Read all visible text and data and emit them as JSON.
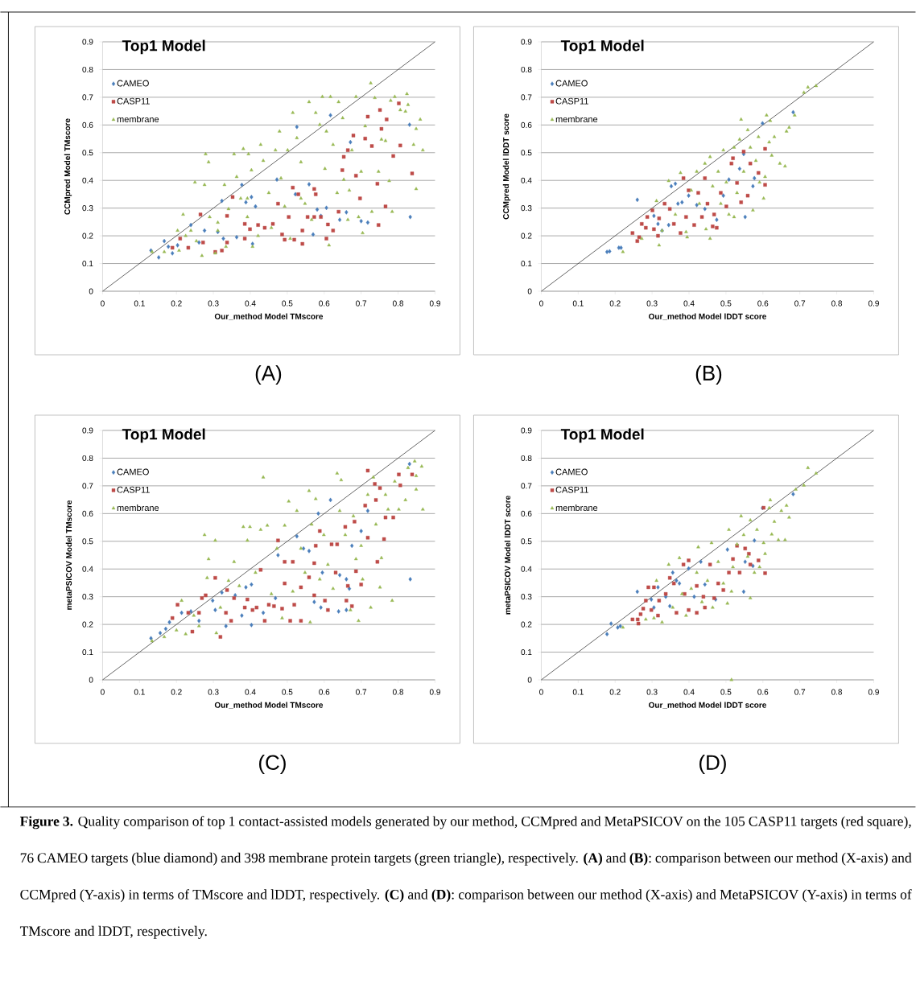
{
  "chart_data": [
    {
      "type": "scatter",
      "title": "Top1 Model",
      "xlabel": "Our_method Model TMscore",
      "ylabel": "CCMpred Model TMscore",
      "xlim": [
        0,
        0.9
      ],
      "ylim": [
        0,
        0.9
      ],
      "xticks": [
        0,
        0.1,
        0.2,
        0.3,
        0.4,
        0.5,
        0.6,
        0.7,
        0.8,
        0.9
      ],
      "yticks": [
        0,
        0.1,
        0.2,
        0.3,
        0.4,
        0.5,
        0.6,
        0.7,
        0.8,
        0.9
      ],
      "grid": "y",
      "legend": "top left",
      "annotations": [
        "(A)",
        "**Figure 3.** Quality comparison of top 1 contact-assisted models generated by our method, CCMpred and MetaPSICOV on the 105 CASP11 targets (red square), 76 CAMEO targets (blue diamond) and 398 membrane protein targets (green triangle), respectively. **(A)** and **(B)**: comparison between our method (X-axis) and CCMpred (Y-axis) in terms of TMscore and lDDT, respectively. **(C)** and **(D)**: comparison between our method (X-axis) and MetaPSICOV (Y-axis) in terms of TMscore and lDDT, respectively."
      ],
      "series": [
        {
          "name": "CAMEO",
          "color": "#4a7ebb",
          "marker": "diamond",
          "x": [
            0.131,
            0.152,
            0.167,
            0.178,
            0.189,
            0.203,
            0.239,
            0.261,
            0.276,
            0.312,
            0.327,
            0.323,
            0.363,
            0.377,
            0.388,
            0.403,
            0.406,
            0.414,
            0.472,
            0.522,
            0.526,
            0.559,
            0.57,
            0.581,
            0.591,
            0.606,
            0.617,
            0.642,
            0.66,
            0.671,
            0.7,
            0.718,
            0.831,
            0.833
          ],
          "values": [
            0.147,
            0.122,
            0.181,
            0.161,
            0.137,
            0.166,
            0.239,
            0.176,
            0.219,
            0.214,
            0.19,
            0.326,
            0.195,
            0.384,
            0.321,
            0.34,
            0.171,
            0.306,
            0.403,
            0.35,
            0.593,
            0.386,
            0.205,
            0.295,
            0.272,
            0.301,
            0.635,
            0.258,
            0.285,
            0.538,
            0.253,
            0.248,
            0.601,
            0.268
          ]
        },
        {
          "name": "CASP11",
          "color": "#be4b48",
          "marker": "square",
          "x": [
            0.189,
            0.21,
            0.232,
            0.265,
            0.272,
            0.305,
            0.323,
            0.337,
            0.337,
            0.352,
            0.385,
            0.385,
            0.399,
            0.421,
            0.439,
            0.461,
            0.475,
            0.486,
            0.493,
            0.504,
            0.515,
            0.519,
            0.53,
            0.541,
            0.541,
            0.555,
            0.573,
            0.573,
            0.577,
            0.591,
            0.606,
            0.61,
            0.624,
            0.639,
            0.649,
            0.653,
            0.664,
            0.679,
            0.686,
            0.697,
            0.711,
            0.718,
            0.729,
            0.744,
            0.747,
            0.751,
            0.755,
            0.766,
            0.769,
            0.787,
            0.802,
            0.806,
            0.838
          ],
          "values": [
            0.157,
            0.19,
            0.157,
            0.277,
            0.176,
            0.142,
            0.147,
            0.176,
            0.272,
            0.34,
            0.19,
            0.243,
            0.224,
            0.239,
            0.229,
            0.243,
            0.316,
            0.205,
            0.186,
            0.268,
            0.374,
            0.186,
            0.35,
            0.219,
            0.171,
            0.268,
            0.369,
            0.268,
            0.35,
            0.268,
            0.19,
            0.241,
            0.219,
            0.287,
            0.437,
            0.485,
            0.509,
            0.562,
            0.417,
            0.335,
            0.551,
            0.63,
            0.524,
            0.388,
            0.239,
            0.654,
            0.586,
            0.306,
            0.62,
            0.488,
            0.678,
            0.526,
            0.425
          ]
        },
        {
          "name": "membrane",
          "color": "#98b954",
          "marker": "triangle",
          "x": [
            0.134,
            0.167,
            0.203,
            0.207,
            0.218,
            0.239,
            0.25,
            0.254,
            0.269,
            0.276,
            0.279,
            0.287,
            0.29,
            0.305,
            0.312,
            0.33,
            0.334,
            0.341,
            0.356,
            0.363,
            0.374,
            0.381,
            0.392,
            0.395,
            0.403,
            0.406,
            0.421,
            0.428,
            0.435,
            0.45,
            0.457,
            0.468,
            0.479,
            0.483,
            0.493,
            0.501,
            0.508,
            0.515,
            0.526,
            0.537,
            0.548,
            0.559,
            0.566,
            0.577,
            0.588,
            0.595,
            0.602,
            0.606,
            0.613,
            0.617,
            0.624,
            0.635,
            0.639,
            0.65,
            0.653,
            0.664,
            0.668,
            0.675,
            0.686,
            0.693,
            0.7,
            0.704,
            0.711,
            0.726,
            0.729,
            0.737,
            0.747,
            0.755,
            0.766,
            0.776,
            0.78,
            0.784,
            0.791,
            0.806,
            0.82,
            0.824,
            0.827,
            0.842,
            0.849,
            0.849,
            0.86,
            0.867,
            0.537,
            0.392,
            0.312,
            0.225
          ],
          "values": [
            0.142,
            0.142,
            0.219,
            0.147,
            0.277,
            0.219,
            0.393,
            0.181,
            0.128,
            0.384,
            0.495,
            0.466,
            0.268,
            0.137,
            0.248,
            0.384,
            0.161,
            0.297,
            0.495,
            0.413,
            0.335,
            0.514,
            0.268,
            0.495,
            0.437,
            0.161,
            0.2,
            0.529,
            0.471,
            0.355,
            0.229,
            0.509,
            0.577,
            0.408,
            0.306,
            0.509,
            0.19,
            0.644,
            0.553,
            0.466,
            0.316,
            0.683,
            0.258,
            0.644,
            0.601,
            0.702,
            0.442,
            0.577,
            0.166,
            0.702,
            0.529,
            0.355,
            0.683,
            0.625,
            0.403,
            0.258,
            0.364,
            0.509,
            0.702,
            0.268,
            0.432,
            0.21,
            0.596,
            0.751,
            0.287,
            0.698,
            0.432,
            0.548,
            0.543,
            0.398,
            0.688,
            0.287,
            0.702,
            0.654,
            0.649,
            0.712,
            0.673,
            0.529,
            0.369,
            0.586,
            0.62,
            0.509,
            0.335,
            0.335,
            0.219,
            0.2
          ]
        },
        {
          "type": "line",
          "color": "#404040",
          "x": [
            0,
            0.9
          ],
          "values": [
            0,
            0.9
          ]
        }
      ]
    },
    {
      "type": "scatter",
      "title": "Top1 Model",
      "xlabel": "Our_method Model lDDT score",
      "ylabel": "CCMpred Model lDDT score",
      "xlim": [
        0,
        0.9
      ],
      "ylim": [
        0,
        0.9
      ],
      "xticks": [
        0,
        0.1,
        0.2,
        0.3,
        0.4,
        0.5,
        0.6,
        0.7,
        0.8,
        0.9
      ],
      "yticks": [
        0,
        0.1,
        0.2,
        0.3,
        0.4,
        0.5,
        0.6,
        0.7,
        0.8,
        0.9
      ],
      "grid": "y",
      "legend": "top left",
      "annotations": [
        "(B)"
      ],
      "series": [
        {
          "name": "CAMEO",
          "color": "#4a7ebb",
          "marker": "diamond",
          "x": [
            0.178,
            0.185,
            0.21,
            0.216,
            0.26,
            0.305,
            0.316,
            0.327,
            0.345,
            0.352,
            0.363,
            0.37,
            0.381,
            0.399,
            0.421,
            0.443,
            0.475,
            0.493,
            0.508,
            0.537,
            0.548,
            0.552,
            0.573,
            0.577,
            0.599,
            0.682
          ],
          "values": [
            0.142,
            0.144,
            0.157,
            0.157,
            0.33,
            0.272,
            0.243,
            0.219,
            0.239,
            0.379,
            0.388,
            0.316,
            0.321,
            0.345,
            0.311,
            0.297,
            0.258,
            0.345,
            0.403,
            0.442,
            0.495,
            0.268,
            0.379,
            0.408,
            0.606,
            0.646
          ]
        },
        {
          "name": "CASP11",
          "color": "#be4b48",
          "marker": "square",
          "x": [
            0.247,
            0.26,
            0.265,
            0.272,
            0.283,
            0.287,
            0.301,
            0.305,
            0.316,
            0.319,
            0.334,
            0.348,
            0.359,
            0.377,
            0.385,
            0.392,
            0.399,
            0.414,
            0.425,
            0.435,
            0.443,
            0.45,
            0.464,
            0.468,
            0.475,
            0.486,
            0.501,
            0.515,
            0.519,
            0.53,
            0.541,
            0.548,
            0.559,
            0.566,
            0.588,
            0.606,
            0.606
          ],
          "values": [
            0.21,
            0.181,
            0.195,
            0.243,
            0.229,
            0.268,
            0.292,
            0.224,
            0.2,
            0.263,
            0.316,
            0.297,
            0.243,
            0.21,
            0.408,
            0.268,
            0.364,
            0.239,
            0.355,
            0.268,
            0.408,
            0.316,
            0.234,
            0.277,
            0.229,
            0.355,
            0.306,
            0.461,
            0.48,
            0.391,
            0.321,
            0.504,
            0.345,
            0.461,
            0.427,
            0.514,
            0.384
          ]
        },
        {
          "name": "membrane",
          "color": "#98b954",
          "marker": "triangle",
          "x": [
            0.221,
            0.272,
            0.312,
            0.319,
            0.327,
            0.345,
            0.363,
            0.377,
            0.392,
            0.395,
            0.406,
            0.421,
            0.428,
            0.443,
            0.446,
            0.457,
            0.457,
            0.464,
            0.479,
            0.486,
            0.493,
            0.501,
            0.508,
            0.522,
            0.522,
            0.53,
            0.537,
            0.541,
            0.548,
            0.559,
            0.566,
            0.573,
            0.581,
            0.588,
            0.591,
            0.602,
            0.606,
            0.61,
            0.617,
            0.62,
            0.624,
            0.631,
            0.646,
            0.66,
            0.664,
            0.671,
            0.686,
            0.711,
            0.722,
            0.744
          ],
          "values": [
            0.142,
            0.19,
            0.326,
            0.166,
            0.219,
            0.398,
            0.277,
            0.427,
            0.214,
            0.195,
            0.364,
            0.432,
            0.316,
            0.461,
            0.224,
            0.485,
            0.19,
            0.379,
            0.432,
            0.316,
            0.509,
            0.393,
            0.277,
            0.268,
            0.519,
            0.355,
            0.548,
            0.62,
            0.432,
            0.582,
            0.519,
            0.292,
            0.471,
            0.557,
            0.393,
            0.335,
            0.413,
            0.635,
            0.538,
            0.615,
            0.49,
            0.557,
            0.461,
            0.451,
            0.577,
            0.591,
            0.635,
            0.717,
            0.736,
            0.741
          ]
        },
        {
          "type": "line",
          "color": "#404040",
          "x": [
            0,
            0.9
          ],
          "values": [
            0,
            0.9
          ]
        }
      ]
    },
    {
      "type": "scatter",
      "title": "Top1 Model",
      "xlabel": "Our_method Model TMscore",
      "ylabel": "metaPSICOV Model TMscore",
      "xlim": [
        0,
        0.9
      ],
      "ylim": [
        0,
        0.9
      ],
      "xticks": [
        0,
        0.1,
        0.2,
        0.3,
        0.4,
        0.5,
        0.6,
        0.7,
        0.8,
        0.9
      ],
      "yticks": [
        0,
        0.1,
        0.2,
        0.3,
        0.4,
        0.5,
        0.6,
        0.7,
        0.8,
        0.9
      ],
      "grid": "y",
      "legend": "top left",
      "annotations": [
        "(C)"
      ],
      "series": [
        {
          "name": "CAMEO",
          "color": "#4a7ebb",
          "marker": "diamond",
          "x": [
            0.131,
            0.156,
            0.171,
            0.181,
            0.214,
            0.239,
            0.261,
            0.298,
            0.305,
            0.323,
            0.334,
            0.359,
            0.377,
            0.388,
            0.403,
            0.403,
            0.435,
            0.468,
            0.475,
            0.526,
            0.544,
            0.559,
            0.573,
            0.584,
            0.591,
            0.595,
            0.617,
            0.639,
            0.642,
            0.66,
            0.66,
            0.668,
            0.675,
            0.7,
            0.718,
            0.831,
            0.833
          ],
          "values": [
            0.15,
            0.169,
            0.184,
            0.208,
            0.242,
            0.247,
            0.213,
            0.286,
            0.252,
            0.315,
            0.194,
            0.305,
            0.232,
            0.334,
            0.344,
            0.198,
            0.242,
            0.295,
            0.45,
            0.518,
            0.474,
            0.465,
            0.281,
            0.6,
            0.261,
            0.387,
            0.649,
            0.247,
            0.378,
            0.363,
            0.252,
            0.329,
            0.484,
            0.537,
            0.61,
            0.779,
            0.363
          ]
        },
        {
          "name": "CASP11",
          "color": "#be4b48",
          "marker": "square",
          "x": [
            0.189,
            0.203,
            0.232,
            0.243,
            0.261,
            0.269,
            0.279,
            0.305,
            0.319,
            0.334,
            0.337,
            0.348,
            0.356,
            0.385,
            0.392,
            0.406,
            0.417,
            0.428,
            0.439,
            0.45,
            0.464,
            0.475,
            0.486,
            0.493,
            0.493,
            0.508,
            0.515,
            0.519,
            0.537,
            0.537,
            0.559,
            0.573,
            0.573,
            0.577,
            0.588,
            0.602,
            0.61,
            0.62,
            0.631,
            0.635,
            0.657,
            0.66,
            0.664,
            0.675,
            0.682,
            0.686,
            0.7,
            0.711,
            0.718,
            0.718,
            0.737,
            0.74,
            0.744,
            0.751,
            0.762,
            0.766,
            0.787,
            0.802,
            0.806,
            0.838
          ],
          "values": [
            0.223,
            0.271,
            0.242,
            0.174,
            0.242,
            0.295,
            0.305,
            0.368,
            0.155,
            0.242,
            0.324,
            0.213,
            0.295,
            0.261,
            0.29,
            0.252,
            0.261,
            0.397,
            0.213,
            0.271,
            0.266,
            0.503,
            0.257,
            0.348,
            0.426,
            0.213,
            0.426,
            0.271,
            0.213,
            0.334,
            0.37,
            0.305,
            0.421,
            0.484,
            0.537,
            0.286,
            0.252,
            0.489,
            0.387,
            0.489,
            0.552,
            0.286,
            0.339,
            0.266,
            0.571,
            0.392,
            0.344,
            0.629,
            0.513,
            0.755,
            0.707,
            0.649,
            0.426,
            0.692,
            0.508,
            0.586,
            0.586,
            0.741,
            0.702,
            0.741
          ]
        },
        {
          "name": "membrane",
          "color": "#98b954",
          "marker": "triangle",
          "x": [
            0.134,
            0.167,
            0.2,
            0.214,
            0.225,
            0.247,
            0.261,
            0.276,
            0.283,
            0.287,
            0.305,
            0.308,
            0.319,
            0.341,
            0.356,
            0.37,
            0.381,
            0.392,
            0.399,
            0.414,
            0.428,
            0.435,
            0.446,
            0.457,
            0.472,
            0.486,
            0.493,
            0.504,
            0.515,
            0.526,
            0.537,
            0.548,
            0.559,
            0.562,
            0.566,
            0.577,
            0.588,
            0.599,
            0.61,
            0.624,
            0.635,
            0.642,
            0.646,
            0.657,
            0.671,
            0.679,
            0.686,
            0.693,
            0.7,
            0.704,
            0.718,
            0.726,
            0.733,
            0.74,
            0.751,
            0.755,
            0.766,
            0.773,
            0.784,
            0.791,
            0.802,
            0.82,
            0.827,
            0.845,
            0.849,
            0.849,
            0.864,
            0.867
          ],
          "values": [
            0.14,
            0.155,
            0.179,
            0.286,
            0.165,
            0.232,
            0.194,
            0.523,
            0.368,
            0.436,
            0.503,
            0.169,
            0.261,
            0.358,
            0.426,
            0.339,
            0.552,
            0.503,
            0.552,
            0.387,
            0.542,
            0.731,
            0.557,
            0.31,
            0.474,
            0.223,
            0.557,
            0.644,
            0.319,
            0.61,
            0.474,
            0.387,
            0.682,
            0.208,
            0.561,
            0.653,
            0.363,
            0.523,
            0.416,
            0.329,
            0.745,
            0.61,
            0.721,
            0.523,
            0.252,
            0.591,
            0.436,
            0.213,
            0.484,
            0.363,
            0.668,
            0.261,
            0.731,
            0.561,
            0.334,
            0.44,
            0.668,
            0.615,
            0.286,
            0.716,
            0.615,
            0.649,
            0.765,
            0.789,
            0.687,
            0.736,
            0.77,
            0.615
          ]
        },
        {
          "type": "line",
          "color": "#404040",
          "x": [
            0,
            0.9
          ],
          "values": [
            0,
            0.9
          ]
        }
      ]
    },
    {
      "type": "scatter",
      "title": "Top1 Model",
      "xlabel": "Our_method Model lDDT score",
      "ylabel": "metaPSICOV Model lDDT score",
      "xlim": [
        0,
        0.9
      ],
      "ylim": [
        0,
        0.9
      ],
      "xticks": [
        0,
        0.1,
        0.2,
        0.3,
        0.4,
        0.5,
        0.6,
        0.7,
        0.8,
        0.9
      ],
      "yticks": [
        0,
        0.1,
        0.2,
        0.3,
        0.4,
        0.5,
        0.6,
        0.7,
        0.8,
        0.9
      ],
      "grid": "y",
      "legend": "top left",
      "annotations": [
        "(D)"
      ],
      "series": [
        {
          "name": "CAMEO",
          "color": "#4a7ebb",
          "marker": "diamond",
          "x": [
            0.178,
            0.189,
            0.207,
            0.214,
            0.26,
            0.298,
            0.305,
            0.316,
            0.337,
            0.348,
            0.356,
            0.366,
            0.374,
            0.399,
            0.414,
            0.432,
            0.443,
            0.472,
            0.504,
            0.548,
            0.552,
            0.573,
            0.577,
            0.599,
            0.682
          ],
          "values": [
            0.165,
            0.203,
            0.189,
            0.194,
            0.318,
            0.29,
            0.261,
            0.334,
            0.3,
            0.266,
            0.387,
            0.358,
            0.348,
            0.402,
            0.3,
            0.426,
            0.344,
            0.29,
            0.47,
            0.318,
            0.426,
            0.411,
            0.503,
            0.62,
            0.67
          ]
        },
        {
          "name": "CASP11",
          "color": "#be4b48",
          "marker": "square",
          "x": [
            0.247,
            0.261,
            0.263,
            0.269,
            0.276,
            0.283,
            0.29,
            0.298,
            0.305,
            0.316,
            0.319,
            0.337,
            0.348,
            0.359,
            0.366,
            0.385,
            0.388,
            0.399,
            0.399,
            0.421,
            0.421,
            0.439,
            0.443,
            0.457,
            0.468,
            0.479,
            0.493,
            0.508,
            0.519,
            0.53,
            0.537,
            0.552,
            0.562,
            0.566,
            0.588,
            0.606,
            0.602
          ],
          "values": [
            0.218,
            0.218,
            0.203,
            0.237,
            0.257,
            0.286,
            0.334,
            0.252,
            0.334,
            0.232,
            0.286,
            0.31,
            0.368,
            0.348,
            0.242,
            0.416,
            0.31,
            0.431,
            0.252,
            0.242,
            0.339,
            0.3,
            0.261,
            0.416,
            0.295,
            0.348,
            0.324,
            0.387,
            0.436,
            0.484,
            0.387,
            0.474,
            0.455,
            0.416,
            0.431,
            0.385,
            0.621
          ]
        },
        {
          "name": "membrane",
          "color": "#98b954",
          "marker": "triangle",
          "x": [
            0.221,
            0.283,
            0.305,
            0.312,
            0.327,
            0.345,
            0.356,
            0.374,
            0.381,
            0.392,
            0.406,
            0.421,
            0.425,
            0.435,
            0.45,
            0.461,
            0.464,
            0.479,
            0.493,
            0.504,
            0.508,
            0.515,
            0.519,
            0.53,
            0.541,
            0.548,
            0.559,
            0.566,
            0.566,
            0.577,
            0.584,
            0.591,
            0.602,
            0.606,
            0.617,
            0.62,
            0.624,
            0.631,
            0.642,
            0.65,
            0.66,
            0.664,
            0.671,
            0.689,
            0.711,
            0.722,
            0.744,
            0.515
          ],
          "values": [
            0.189,
            0.218,
            0.223,
            0.358,
            0.208,
            0.416,
            0.261,
            0.44,
            0.31,
            0.232,
            0.329,
            0.387,
            0.479,
            0.281,
            0.358,
            0.494,
            0.261,
            0.426,
            0.348,
            0.276,
            0.542,
            0.319,
            0.407,
            0.489,
            0.591,
            0.523,
            0.445,
            0.295,
            0.576,
            0.387,
            0.542,
            0.407,
            0.494,
            0.455,
            0.62,
            0.649,
            0.525,
            0.571,
            0.505,
            0.61,
            0.505,
            0.629,
            0.586,
            0.687,
            0.702,
            0.765,
            0.745,
            0.0
          ]
        },
        {
          "type": "line",
          "color": "#404040",
          "x": [
            0,
            0.9
          ],
          "values": [
            0,
            0.9
          ]
        }
      ]
    }
  ]
}
